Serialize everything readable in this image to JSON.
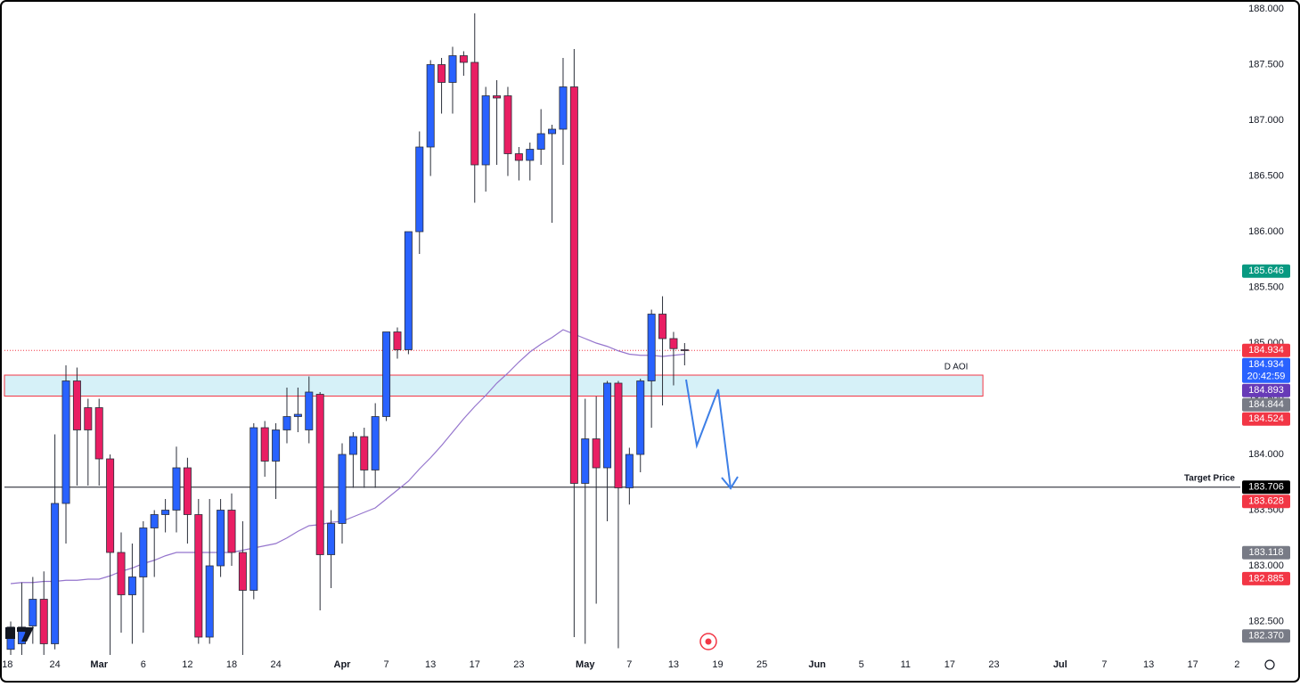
{
  "chart_data": {
    "type": "candlestick",
    "up_color": "#2962ff",
    "down_color": "#e91e63",
    "wick_color": "#2a2e39",
    "x": [
      0,
      1,
      2,
      3,
      4,
      5,
      6,
      7,
      8,
      9,
      10,
      11,
      12,
      13,
      14,
      15,
      16,
      17,
      18,
      19,
      20,
      21,
      22,
      23,
      24,
      25,
      26,
      27,
      28,
      29,
      30,
      31,
      32,
      33,
      34,
      35,
      36,
      37,
      38,
      39,
      40,
      41,
      42,
      43,
      44,
      45,
      46,
      47,
      48,
      49,
      50,
      51,
      52,
      53,
      54,
      55,
      56,
      57,
      58,
      59,
      60,
      61
    ],
    "open": [
      182.25,
      182.3,
      182.46,
      182.7,
      182.3,
      183.56,
      184.66,
      184.42,
      184.42,
      183.96,
      183.12,
      182.74,
      182.9,
      183.34,
      183.46,
      183.5,
      183.88,
      183.46,
      182.36,
      183.0,
      183.5,
      183.12,
      182.78,
      184.24,
      183.94,
      184.22,
      184.34,
      184.22,
      184.54,
      183.1,
      183.38,
      184.0,
      184.16,
      183.86,
      184.34,
      185.1,
      184.94,
      186.0,
      186.76,
      187.5,
      187.34,
      187.58,
      187.52,
      186.6,
      187.22,
      187.22,
      186.7,
      186.64,
      186.74,
      186.88,
      186.92,
      187.3,
      183.74,
      184.14,
      183.88,
      184.64,
      183.7,
      184.0,
      184.66,
      185.26,
      185.04,
      184.94
    ],
    "high": [
      182.5,
      182.85,
      182.9,
      182.95,
      184.18,
      184.8,
      184.78,
      184.5,
      184.5,
      184.0,
      183.3,
      183.2,
      183.4,
      183.5,
      183.6,
      184.07,
      183.97,
      183.6,
      183.6,
      183.6,
      183.65,
      183.4,
      184.28,
      184.3,
      184.28,
      184.6,
      184.6,
      184.7,
      184.56,
      183.5,
      184.1,
      184.2,
      184.24,
      184.46,
      185.1,
      185.14,
      186.0,
      186.9,
      187.54,
      187.56,
      187.66,
      187.62,
      187.96,
      187.3,
      187.36,
      187.3,
      186.76,
      186.8,
      187.1,
      186.96,
      187.56,
      187.64,
      184.5,
      184.52,
      184.66,
      184.66,
      184.06,
      184.68,
      185.3,
      185.42,
      185.1,
      185.0
    ],
    "low": [
      182.2,
      182.2,
      182.3,
      182.2,
      182.25,
      183.2,
      183.72,
      183.72,
      183.72,
      182.2,
      182.4,
      182.3,
      182.4,
      182.9,
      183.3,
      183.3,
      183.2,
      182.3,
      182.3,
      182.9,
      183.0,
      182.2,
      182.7,
      183.8,
      183.6,
      184.1,
      184.2,
      184.1,
      182.6,
      182.8,
      183.2,
      183.7,
      183.7,
      183.7,
      184.3,
      184.86,
      184.9,
      185.8,
      186.5,
      187.06,
      187.06,
      187.4,
      186.26,
      186.36,
      186.6,
      186.5,
      186.46,
      186.46,
      186.6,
      186.08,
      186.6,
      182.36,
      182.3,
      182.66,
      183.4,
      182.26,
      183.55,
      183.84,
      184.24,
      184.44,
      184.62,
      184.8
    ],
    "close": [
      182.45,
      182.45,
      182.7,
      182.3,
      183.56,
      184.66,
      184.22,
      184.22,
      183.96,
      183.12,
      182.74,
      182.9,
      183.34,
      183.46,
      183.5,
      183.88,
      183.46,
      182.36,
      183.0,
      183.5,
      183.12,
      182.78,
      184.24,
      183.94,
      184.22,
      184.34,
      184.36,
      184.56,
      183.1,
      183.38,
      184.0,
      184.16,
      183.86,
      184.34,
      185.1,
      184.94,
      186.0,
      186.76,
      187.5,
      187.34,
      187.58,
      187.52,
      186.6,
      187.22,
      187.2,
      186.7,
      186.64,
      186.74,
      186.88,
      186.92,
      187.3,
      183.74,
      184.14,
      183.88,
      184.64,
      183.7,
      184.0,
      184.66,
      185.26,
      185.04,
      184.95,
      184.934
    ],
    "ma": {
      "color": "#9575cd",
      "values": [
        182.84,
        182.85,
        182.85,
        182.86,
        182.86,
        182.87,
        182.87,
        182.88,
        182.88,
        182.91,
        182.95,
        182.98,
        183.02,
        183.05,
        183.09,
        183.12,
        183.12,
        183.12,
        183.12,
        183.12,
        183.12,
        183.14,
        183.16,
        183.18,
        183.2,
        183.25,
        183.31,
        183.36,
        183.37,
        183.39,
        183.4,
        183.44,
        183.48,
        183.52,
        183.6,
        183.68,
        183.76,
        183.87,
        183.97,
        184.08,
        184.2,
        184.32,
        184.43,
        184.53,
        184.64,
        184.73,
        184.83,
        184.92,
        184.99,
        185.05,
        185.12,
        185.08,
        185.04,
        185.0,
        184.97,
        184.93,
        184.9,
        184.89,
        184.89,
        184.88,
        184.89,
        184.9
      ]
    },
    "xlim": [
      -0.97,
      111.3
    ],
    "xticks": [
      {
        "value": -0.3,
        "label": "18"
      },
      {
        "value": 4,
        "label": "24"
      },
      {
        "value": 8,
        "label": "Mar"
      },
      {
        "value": 12,
        "label": "6"
      },
      {
        "value": 16,
        "label": "12"
      },
      {
        "value": 20,
        "label": "18"
      },
      {
        "value": 24,
        "label": "24"
      },
      {
        "value": 30,
        "label": "Apr"
      },
      {
        "value": 34,
        "label": "7"
      },
      {
        "value": 38,
        "label": "13"
      },
      {
        "value": 42,
        "label": "17"
      },
      {
        "value": 46,
        "label": "23"
      },
      {
        "value": 52,
        "label": "May"
      },
      {
        "value": 56,
        "label": "7"
      },
      {
        "value": 60,
        "label": "13"
      },
      {
        "value": 64,
        "label": "19"
      },
      {
        "value": 68,
        "label": "25"
      },
      {
        "value": 73,
        "label": "Jun"
      },
      {
        "value": 77,
        "label": "5"
      },
      {
        "value": 81,
        "label": "11"
      },
      {
        "value": 85,
        "label": "17"
      },
      {
        "value": 89,
        "label": "23"
      },
      {
        "value": 95,
        "label": "Jul"
      },
      {
        "value": 99,
        "label": "7"
      },
      {
        "value": 103,
        "label": "13"
      },
      {
        "value": 107,
        "label": "17"
      },
      {
        "value": 111,
        "label": "2"
      }
    ],
    "ylim": [
      182.2,
      188.04
    ],
    "yticks": [
      {
        "value": 182.5,
        "label": "182.500"
      },
      {
        "value": 183,
        "label": "183.000"
      },
      {
        "value": 183.5,
        "label": "183.500"
      },
      {
        "value": 184,
        "label": "184.000"
      },
      {
        "value": 184.5,
        "label": "184.500"
      },
      {
        "value": 185,
        "label": "185.000"
      },
      {
        "value": 185.5,
        "label": "185.500"
      },
      {
        "value": 186,
        "label": "186.000"
      },
      {
        "value": 186.5,
        "label": "186.500"
      },
      {
        "value": 187,
        "label": "187.000"
      },
      {
        "value": 187.5,
        "label": "187.500"
      },
      {
        "value": 188,
        "label": "188.000"
      }
    ],
    "grid": false,
    "aoi": {
      "label": "D AOI",
      "top": 184.712,
      "bottom": 184.524,
      "x_end": 88,
      "color": "#f23645",
      "fill": "#d6f1f8"
    },
    "target": {
      "label": "Target Price",
      "value": 183.706
    },
    "price_labels": [
      {
        "value": 185.646,
        "label": "185.646",
        "color": "#089981"
      },
      {
        "value": 184.934,
        "label": "184.934",
        "color": "#f23645"
      },
      {
        "value": 184.934,
        "label": "184.934",
        "color": "#2962ff",
        "timer": "20:42:59"
      },
      {
        "value": 184.893,
        "label": "184.893",
        "color": "#673ab7"
      },
      {
        "value": 184.844,
        "label": "184.844",
        "color": "#787b86"
      },
      {
        "value": 184.524,
        "label": "184.524",
        "color": "#f23645"
      },
      {
        "value": 183.706,
        "label": "183.706",
        "color": "#000000"
      },
      {
        "value": 183.628,
        "label": "183.628",
        "color": "#f23645"
      },
      {
        "value": 183.118,
        "label": "183.118",
        "color": "#787b86"
      },
      {
        "value": 182.885,
        "label": "182.885",
        "color": "#f23645"
      },
      {
        "value": 182.37,
        "label": "182.370",
        "color": "#787b86"
      }
    ]
  }
}
